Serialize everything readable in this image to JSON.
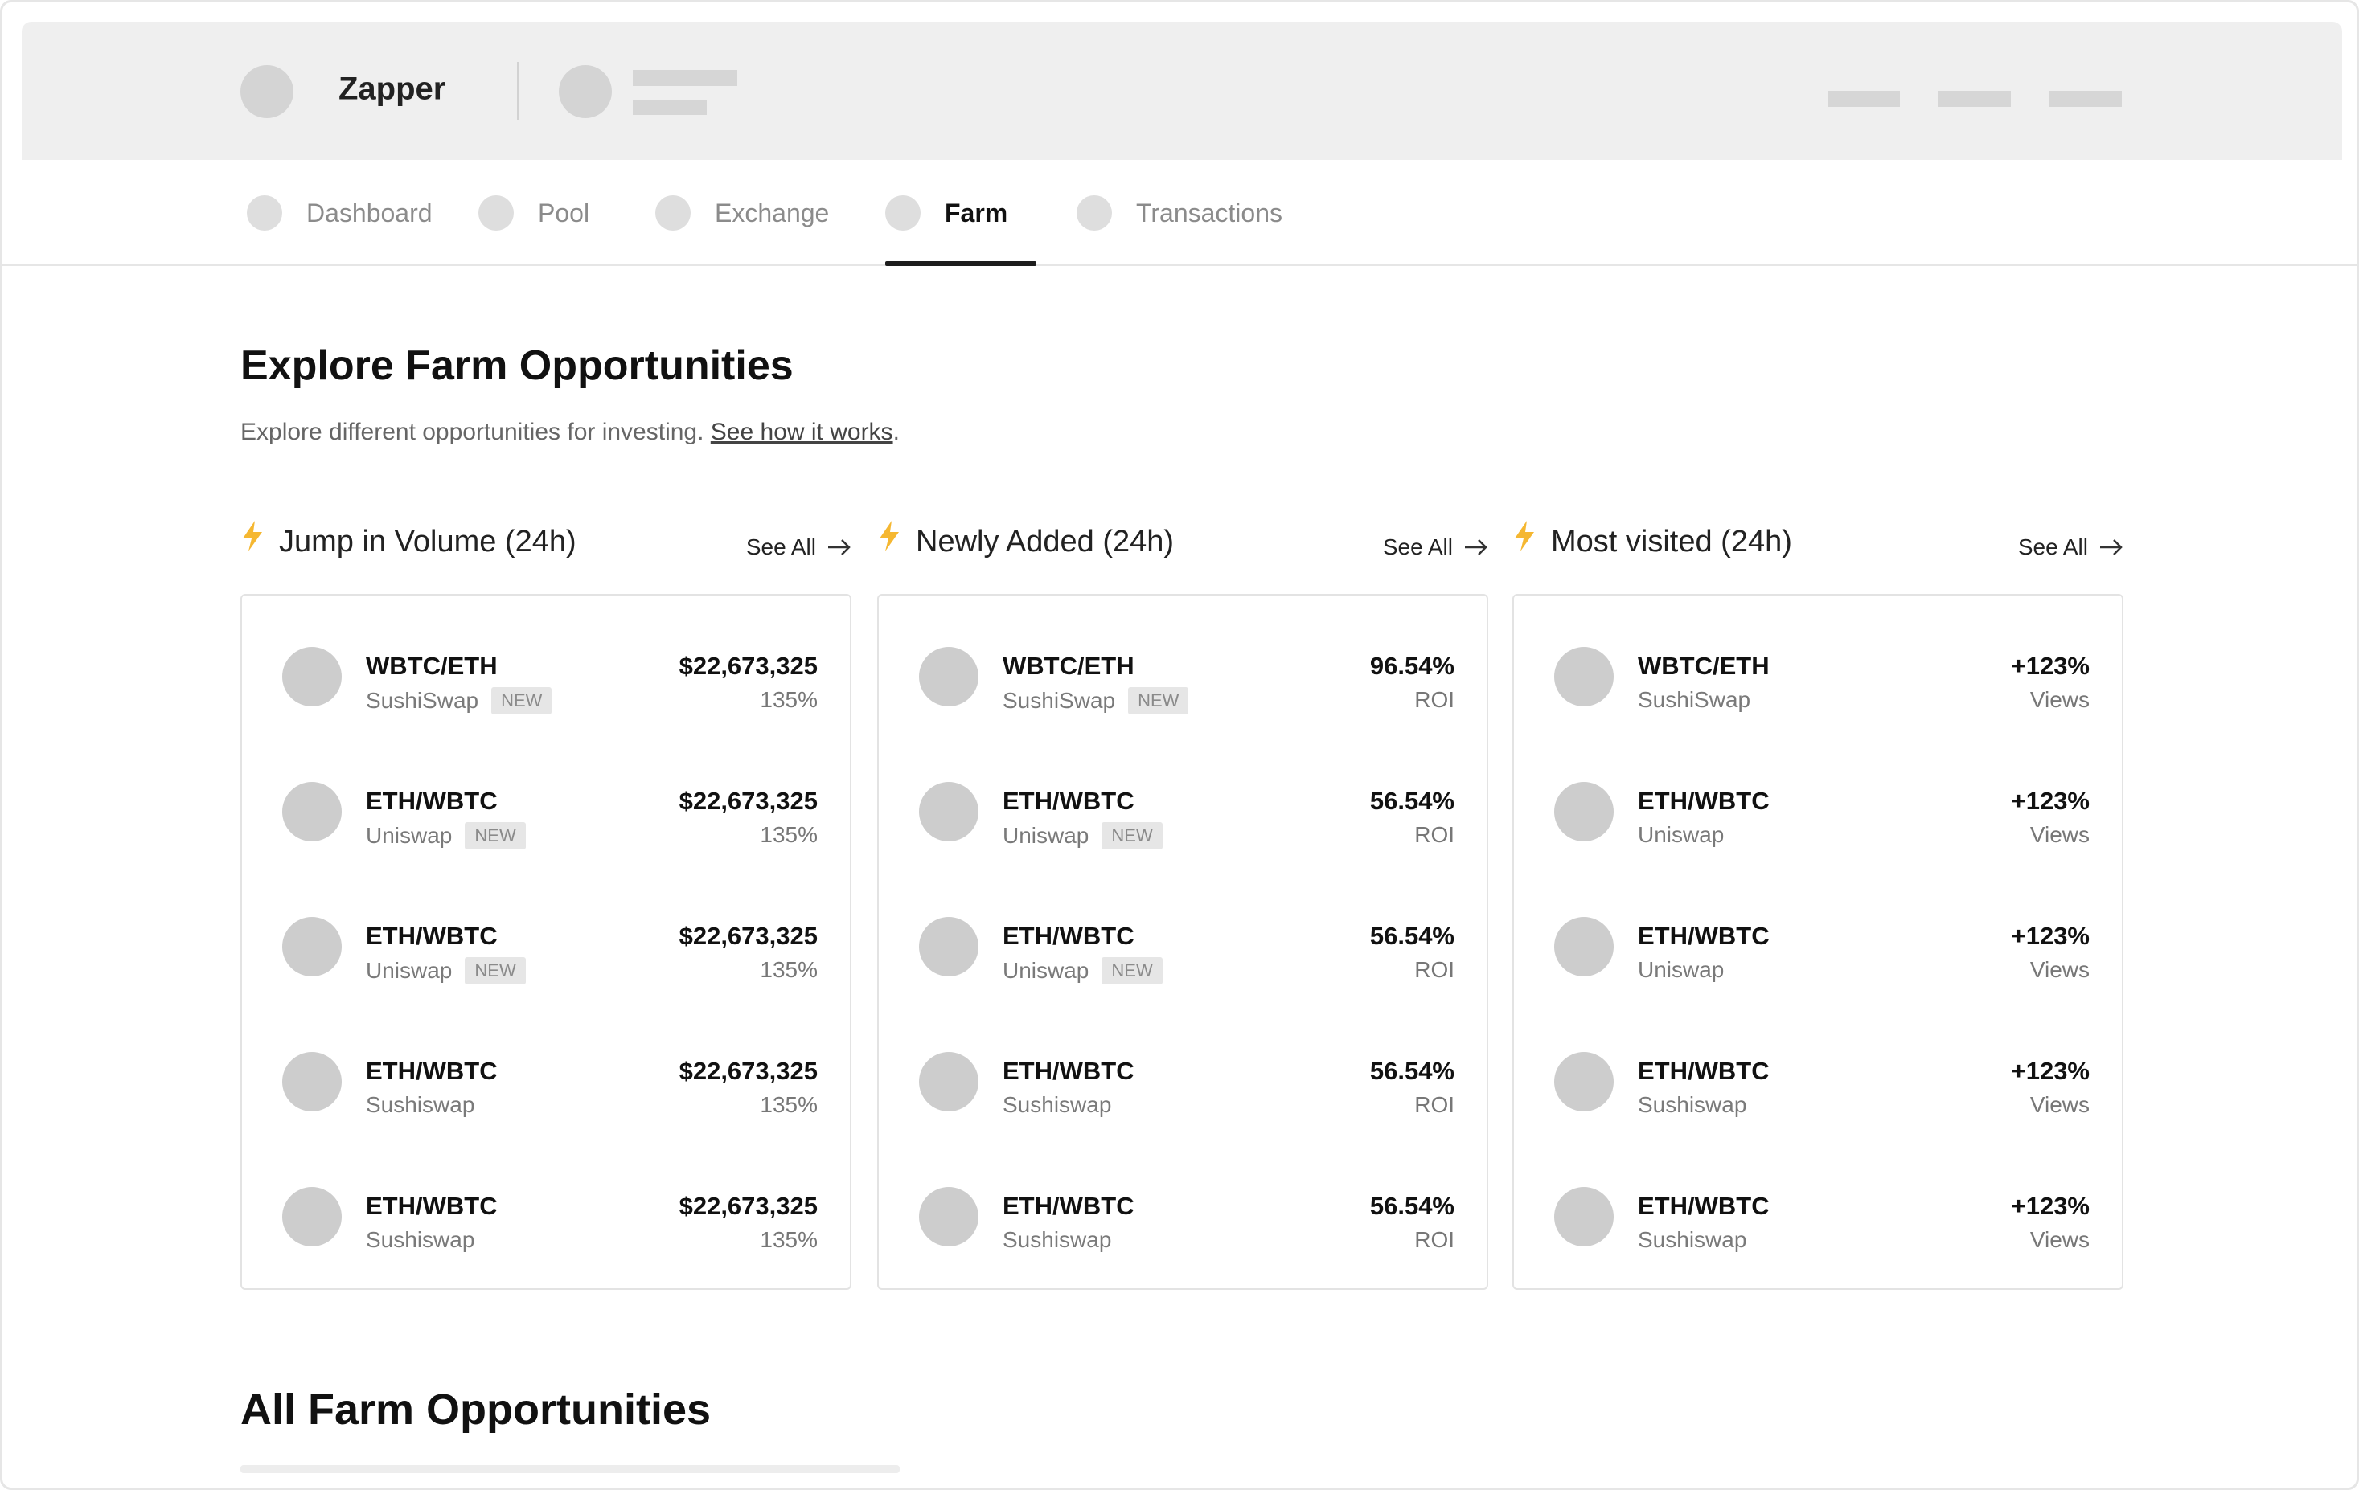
{
  "app": {
    "name": "Zapper"
  },
  "tabs": [
    {
      "label": "Dashboard",
      "active": false
    },
    {
      "label": "Pool",
      "active": false
    },
    {
      "label": "Exchange",
      "active": false
    },
    {
      "label": "Farm",
      "active": true
    },
    {
      "label": "Transactions",
      "active": false
    }
  ],
  "page": {
    "title": "Explore Farm Opportunities",
    "subtitle_prefix": "Explore different opportunities for investing.",
    "subtitle_link": "See how it works",
    "subtitle_suffix": ".",
    "all_title": "All Farm Opportunities"
  },
  "colors": {
    "bolt": "#f5b731",
    "accent": "#1d1d1d"
  },
  "sections": [
    {
      "title": "Jump in Volume (24h)",
      "see_all": "See All",
      "rows": [
        {
          "pair": "WBTC/ETH",
          "venue": "SushiSwap",
          "badge": "NEW",
          "value": "$22,673,325",
          "sub": "135%"
        },
        {
          "pair": "ETH/WBTC",
          "venue": "Uniswap",
          "badge": "NEW",
          "value": "$22,673,325",
          "sub": "135%"
        },
        {
          "pair": "ETH/WBTC",
          "venue": "Uniswap",
          "badge": "NEW",
          "value": "$22,673,325",
          "sub": "135%"
        },
        {
          "pair": "ETH/WBTC",
          "venue": "Sushiswap",
          "badge": "",
          "value": "$22,673,325",
          "sub": "135%"
        },
        {
          "pair": "ETH/WBTC",
          "venue": "Sushiswap",
          "badge": "",
          "value": "$22,673,325",
          "sub": "135%"
        }
      ]
    },
    {
      "title": "Newly Added (24h)",
      "see_all": "See All",
      "rows": [
        {
          "pair": "WBTC/ETH",
          "venue": "SushiSwap",
          "badge": "NEW",
          "value": "96.54%",
          "sub": "ROI"
        },
        {
          "pair": "ETH/WBTC",
          "venue": "Uniswap",
          "badge": "NEW",
          "value": "56.54%",
          "sub": "ROI"
        },
        {
          "pair": "ETH/WBTC",
          "venue": "Uniswap",
          "badge": "NEW",
          "value": "56.54%",
          "sub": "ROI"
        },
        {
          "pair": "ETH/WBTC",
          "venue": "Sushiswap",
          "badge": "",
          "value": "56.54%",
          "sub": "ROI"
        },
        {
          "pair": "ETH/WBTC",
          "venue": "Sushiswap",
          "badge": "",
          "value": "56.54%",
          "sub": "ROI"
        }
      ]
    },
    {
      "title": "Most visited (24h)",
      "see_all": "See All",
      "rows": [
        {
          "pair": "WBTC/ETH",
          "venue": "SushiSwap",
          "badge": "",
          "value": "+123%",
          "sub": "Views"
        },
        {
          "pair": "ETH/WBTC",
          "venue": "Uniswap",
          "badge": "",
          "value": "+123%",
          "sub": "Views"
        },
        {
          "pair": "ETH/WBTC",
          "venue": "Uniswap",
          "badge": "",
          "value": "+123%",
          "sub": "Views"
        },
        {
          "pair": "ETH/WBTC",
          "venue": "Sushiswap",
          "badge": "",
          "value": "+123%",
          "sub": "Views"
        },
        {
          "pair": "ETH/WBTC",
          "venue": "Sushiswap",
          "badge": "",
          "value": "+123%",
          "sub": "Views"
        }
      ]
    }
  ]
}
